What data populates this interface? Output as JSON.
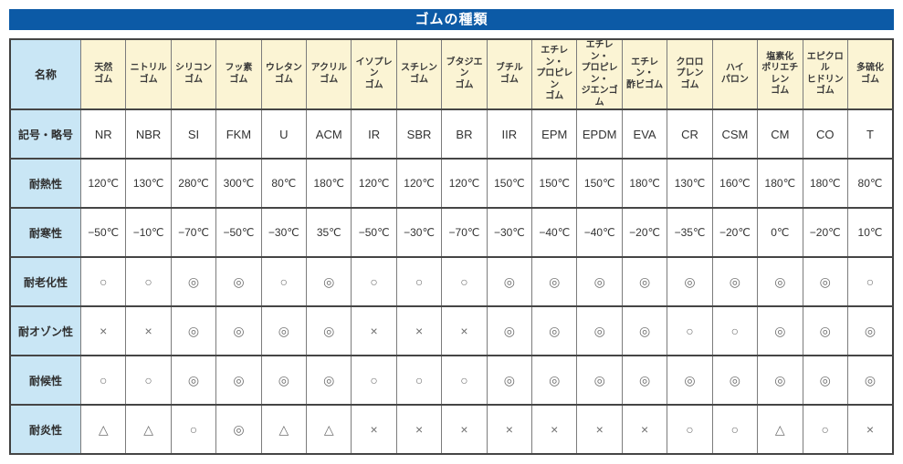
{
  "title": "ゴムの種類",
  "colors": {
    "banner_bg": "#0c5aa6",
    "banner_text": "#ffffff",
    "header_row_bg": "#fbf4d4",
    "label_col_bg": "#c9e6f5",
    "border_dark": "#454545",
    "border_light": "#7c7c7c"
  },
  "row_labels": {
    "name": "名称",
    "code": "記号・略号",
    "heat": "耐熱性",
    "cold": "耐寒性",
    "aging": "耐老化性",
    "ozone": "耐オゾン性",
    "weather": "耐候性",
    "flame": "耐炎性"
  },
  "legend_marks": {
    "excellent": "◎",
    "good": "○",
    "fair": "△",
    "poor": "×"
  },
  "columns": [
    {
      "name": "天然\nゴム",
      "code": "NR",
      "heat": "120℃",
      "cold": "−50℃",
      "aging": "○",
      "ozone": "×",
      "weather": "○",
      "flame": "△"
    },
    {
      "name": "ニトリル\nゴム",
      "code": "NBR",
      "heat": "130℃",
      "cold": "−10℃",
      "aging": "○",
      "ozone": "×",
      "weather": "○",
      "flame": "△"
    },
    {
      "name": "シリコン\nゴム",
      "code": "SI",
      "heat": "280℃",
      "cold": "−70℃",
      "aging": "◎",
      "ozone": "◎",
      "weather": "◎",
      "flame": "○"
    },
    {
      "name": "フッ素\nゴム",
      "code": "FKM",
      "heat": "300℃",
      "cold": "−50℃",
      "aging": "◎",
      "ozone": "◎",
      "weather": "◎",
      "flame": "◎"
    },
    {
      "name": "ウレタン\nゴム",
      "code": "U",
      "heat": "80℃",
      "cold": "−30℃",
      "aging": "○",
      "ozone": "◎",
      "weather": "◎",
      "flame": "△"
    },
    {
      "name": "アクリル\nゴム",
      "code": "ACM",
      "heat": "180℃",
      "cold": "35℃",
      "aging": "◎",
      "ozone": "◎",
      "weather": "◎",
      "flame": "△"
    },
    {
      "name": "イソプレン\nゴム",
      "code": "IR",
      "heat": "120℃",
      "cold": "−50℃",
      "aging": "○",
      "ozone": "×",
      "weather": "○",
      "flame": "×"
    },
    {
      "name": "スチレン\nゴム",
      "code": "SBR",
      "heat": "120℃",
      "cold": "−30℃",
      "aging": "○",
      "ozone": "×",
      "weather": "○",
      "flame": "×"
    },
    {
      "name": "ブタジエン\nゴム",
      "code": "BR",
      "heat": "120℃",
      "cold": "−70℃",
      "aging": "○",
      "ozone": "×",
      "weather": "○",
      "flame": "×"
    },
    {
      "name": "ブチル\nゴム",
      "code": "IIR",
      "heat": "150℃",
      "cold": "−30℃",
      "aging": "◎",
      "ozone": "◎",
      "weather": "◎",
      "flame": "×"
    },
    {
      "name": "エチレン・\nプロピレン\nゴム",
      "code": "EPM",
      "heat": "150℃",
      "cold": "−40℃",
      "aging": "◎",
      "ozone": "◎",
      "weather": "◎",
      "flame": "×"
    },
    {
      "name": "エチレン・\nプロピレン・\nジエンゴム",
      "code": "EPDM",
      "heat": "150℃",
      "cold": "−40℃",
      "aging": "◎",
      "ozone": "◎",
      "weather": "◎",
      "flame": "×"
    },
    {
      "name": "エチレン・\n酢ビゴム",
      "code": "EVA",
      "heat": "180℃",
      "cold": "−20℃",
      "aging": "◎",
      "ozone": "◎",
      "weather": "◎",
      "flame": "×"
    },
    {
      "name": "クロロ\nプレン\nゴム",
      "code": "CR",
      "heat": "130℃",
      "cold": "−35℃",
      "aging": "◎",
      "ozone": "○",
      "weather": "◎",
      "flame": "○"
    },
    {
      "name": "ハイ\nパロン",
      "code": "CSM",
      "heat": "160℃",
      "cold": "−20℃",
      "aging": "◎",
      "ozone": "○",
      "weather": "◎",
      "flame": "○"
    },
    {
      "name": "塩素化\nポリエチレン\nゴム",
      "code": "CM",
      "heat": "180℃",
      "cold": "0℃",
      "aging": "◎",
      "ozone": "◎",
      "weather": "◎",
      "flame": "△"
    },
    {
      "name": "エピクロル\nヒドリン\nゴム",
      "code": "CO",
      "heat": "180℃",
      "cold": "−20℃",
      "aging": "◎",
      "ozone": "◎",
      "weather": "◎",
      "flame": "○"
    },
    {
      "name": "多硫化\nゴム",
      "code": "T",
      "heat": "80℃",
      "cold": "10℃",
      "aging": "○",
      "ozone": "◎",
      "weather": "◎",
      "flame": "×"
    }
  ]
}
